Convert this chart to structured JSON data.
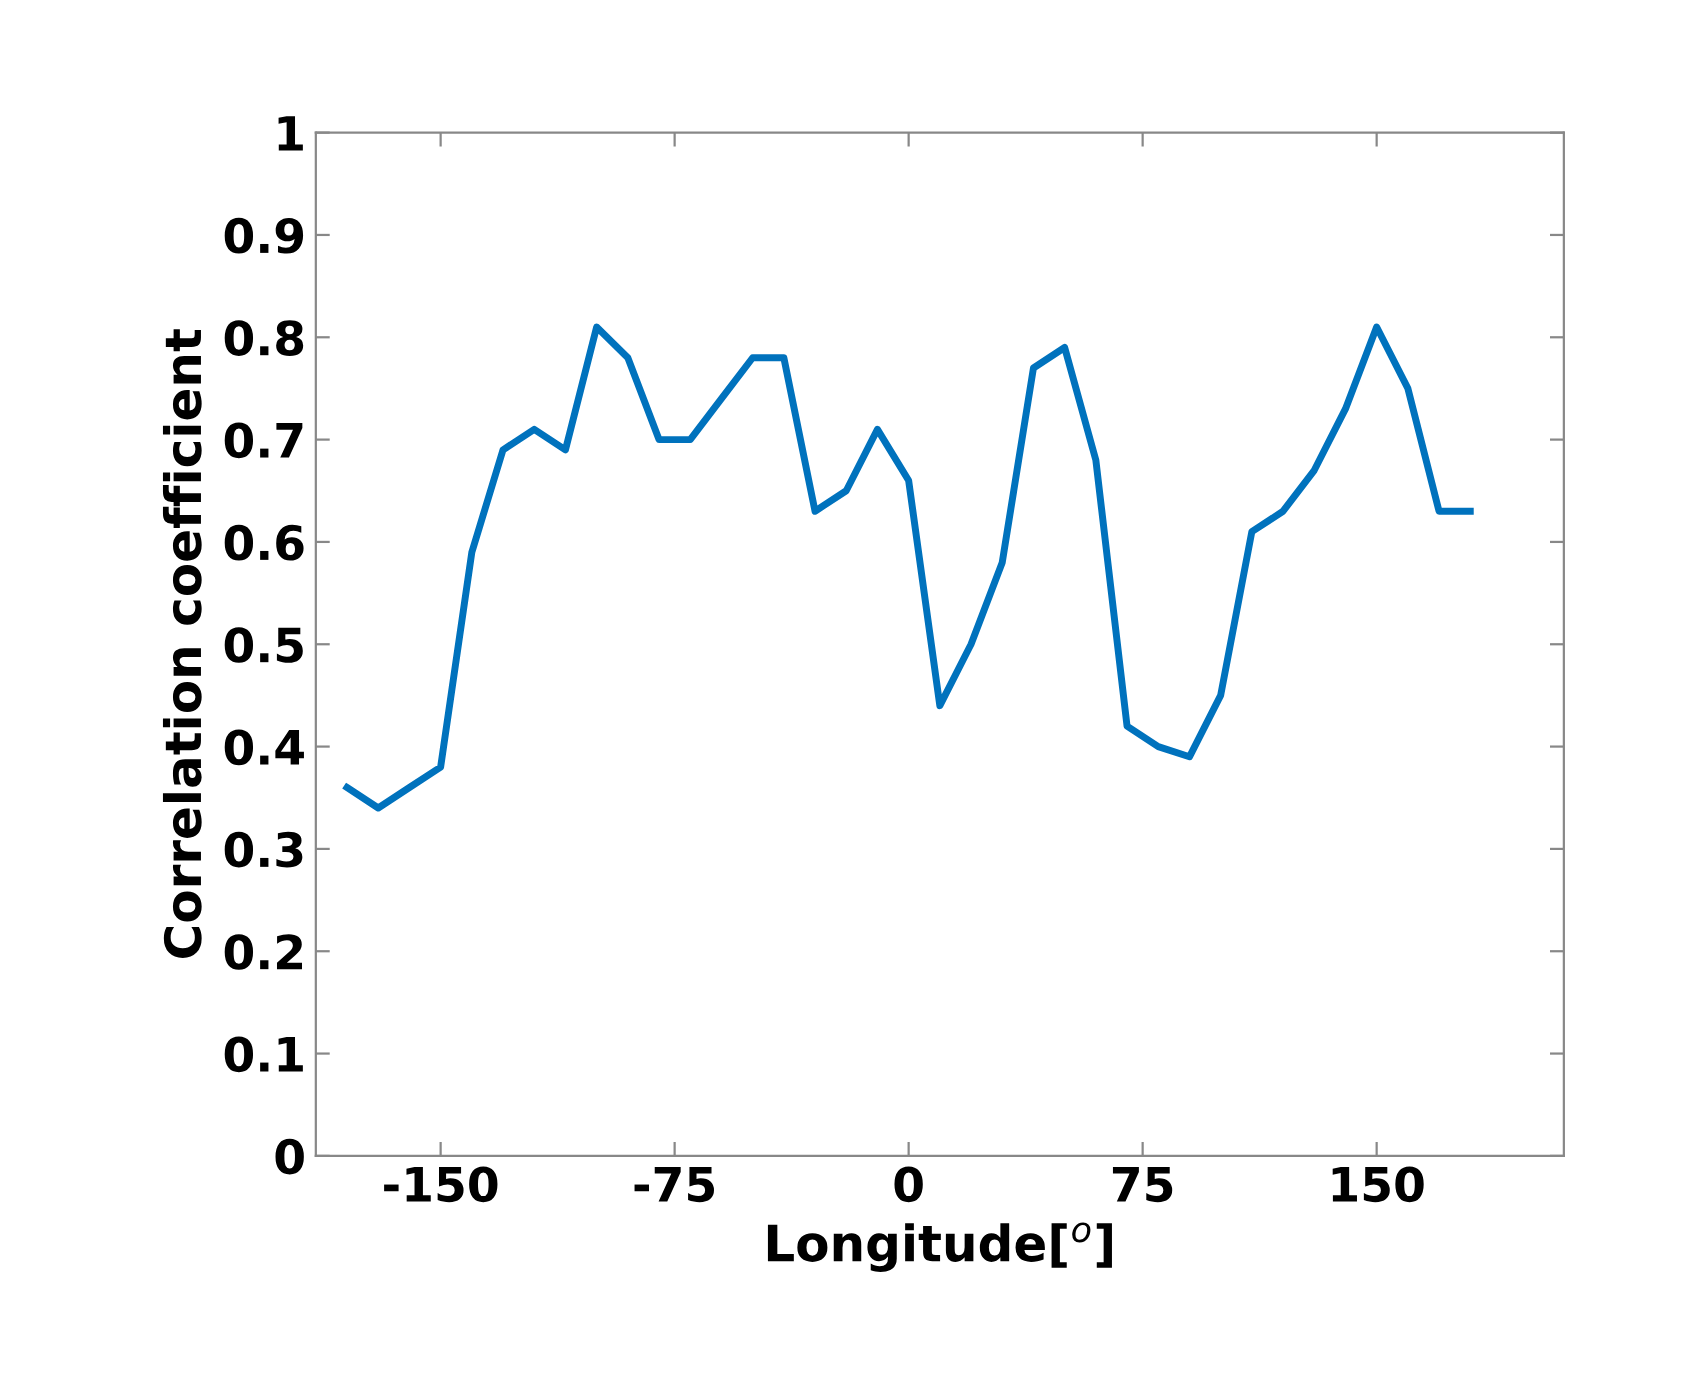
{
  "chart_data": {
    "type": "line",
    "xlabel": "Longitude[$^{o}$]",
    "ylabel": "Correlation coefficient",
    "x": [
      -180,
      -170,
      -160,
      -150,
      -140,
      -130,
      -120,
      -110,
      -100,
      -90,
      -80,
      -70,
      -60,
      -50,
      -40,
      -30,
      -20,
      -10,
      0,
      10,
      20,
      30,
      40,
      50,
      60,
      70,
      80,
      90,
      100,
      110,
      120,
      130,
      140,
      150,
      160,
      170,
      180
    ],
    "series": [
      {
        "color": "#0072bd",
        "values": [
          0.36,
          0.34,
          0.36,
          0.38,
          0.59,
          0.69,
          0.71,
          0.69,
          0.81,
          0.78,
          0.7,
          0.7,
          0.74,
          0.78,
          0.78,
          0.63,
          0.65,
          0.71,
          0.66,
          0.44,
          0.5,
          0.58,
          0.77,
          0.79,
          0.68,
          0.42,
          0.4,
          0.39,
          0.45,
          0.61,
          0.63,
          0.67,
          0.73,
          0.81,
          0.75,
          0.63,
          0.63
        ]
      }
    ],
    "xlim": [
      -190,
      210
    ],
    "xticks": [
      -150,
      -75,
      0,
      75,
      150
    ],
    "ylim": [
      0,
      1
    ],
    "yticks": [
      0,
      0.1,
      0.2,
      0.3,
      0.4,
      0.5,
      0.6,
      0.7,
      0.8,
      0.9,
      1
    ],
    "grid": false,
    "marker": "none",
    "line_style": "solid"
  }
}
